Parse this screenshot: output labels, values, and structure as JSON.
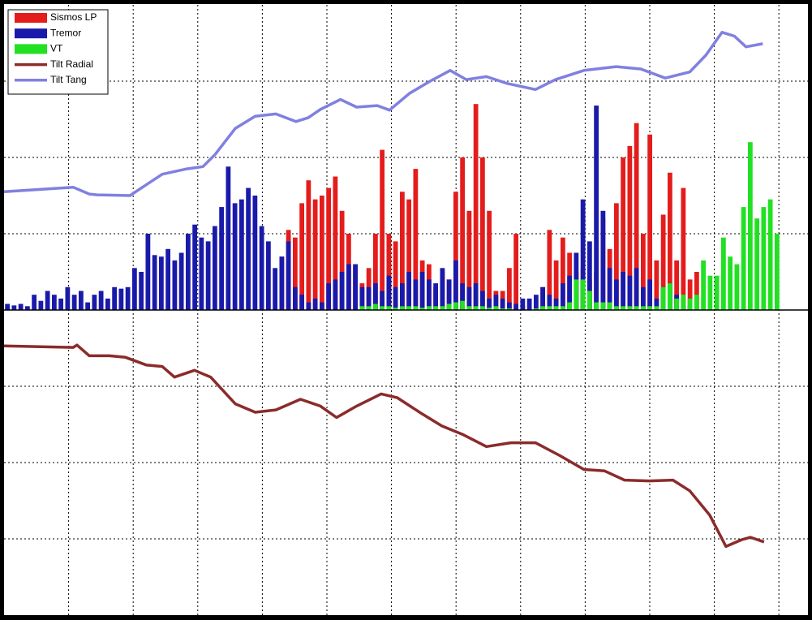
{
  "chart_data": {
    "type": "combo",
    "categories": [
      null,
      null,
      null,
      null,
      null,
      null,
      null,
      null,
      null,
      null,
      null,
      null,
      null,
      null,
      null,
      null,
      null,
      null,
      null,
      null,
      null,
      null,
      null,
      null,
      null,
      null,
      null,
      null,
      null,
      null,
      null,
      null,
      null,
      null,
      null,
      null,
      null,
      null,
      null,
      null,
      null,
      null,
      null,
      null,
      null,
      null,
      null,
      null,
      null,
      null,
      null,
      null,
      null,
      null,
      null,
      null,
      null,
      null,
      null,
      null,
      null,
      null,
      null,
      null,
      null,
      null,
      null,
      null,
      null,
      null,
      null,
      null,
      null,
      null,
      null,
      null,
      null,
      null,
      null,
      null,
      null,
      null,
      null,
      null,
      null,
      null,
      null,
      null,
      null,
      null,
      null,
      null,
      null,
      null,
      null,
      null,
      null,
      null,
      null,
      null,
      null,
      null,
      null,
      null,
      null,
      null,
      null,
      null,
      null,
      null,
      null,
      null,
      null,
      null,
      null,
      null
    ],
    "series": [
      {
        "name": "Sismos LP",
        "type": "bar",
        "color": "#e41c1c",
        "values": [
          0,
          0,
          0,
          0,
          0,
          0,
          0,
          0,
          0,
          0,
          0,
          0,
          0,
          0,
          0,
          0,
          0,
          0,
          0,
          0,
          0,
          0,
          0,
          0,
          0,
          0,
          0,
          0,
          0,
          0,
          0,
          0,
          0,
          0,
          0,
          0,
          0,
          0,
          0,
          0,
          0,
          0.7,
          1.05,
          0.95,
          1.4,
          1.7,
          1.45,
          1.5,
          1.6,
          1.75,
          1.3,
          1.0,
          0.6,
          0.35,
          0.55,
          1.0,
          2.1,
          1.0,
          0.9,
          1.55,
          1.45,
          1.85,
          0.65,
          0.6,
          0.3,
          0.5,
          0.4,
          1.55,
          2.0,
          1.3,
          2.7,
          2.0,
          1.3,
          0.25,
          0.25,
          0.55,
          1.0,
          0.05,
          0,
          0,
          0.3,
          1.05,
          0.65,
          0.95,
          0.75,
          0.5,
          0.55,
          0.4,
          0.5,
          1.2,
          0.8,
          1.4,
          2.0,
          2.15,
          2.45,
          1.0,
          2.3,
          0.65,
          1.25,
          1.8,
          0.65,
          1.6,
          0.4,
          0.5,
          0,
          0,
          0,
          0,
          0,
          0,
          0,
          0,
          0,
          0,
          0,
          0
        ]
      },
      {
        "name": "Tremor",
        "type": "bar",
        "color": "#1a1aaa",
        "values": [
          0.08,
          0.06,
          0.08,
          0.05,
          0.2,
          0.12,
          0.25,
          0.2,
          0.15,
          0.3,
          0.2,
          0.25,
          0.1,
          0.2,
          0.25,
          0.15,
          0.3,
          0.28,
          0.3,
          0.55,
          0.5,
          1.0,
          0.72,
          0.7,
          0.8,
          0.65,
          0.75,
          1.0,
          1.12,
          0.95,
          0.9,
          1.1,
          1.35,
          1.88,
          1.4,
          1.45,
          1.6,
          1.5,
          1.1,
          0.9,
          0.55,
          0.7,
          0.9,
          0.3,
          0.2,
          0.1,
          0.15,
          0.1,
          0.35,
          0.4,
          0.5,
          0.6,
          0.6,
          0.3,
          0.3,
          0.35,
          0.25,
          0.45,
          0.3,
          0.35,
          0.5,
          0.4,
          0.5,
          0.4,
          0.35,
          0.55,
          0.4,
          0.65,
          0.35,
          0.3,
          0.35,
          0.25,
          0.15,
          0.2,
          0.15,
          0.1,
          0.08,
          0.15,
          0.15,
          0.2,
          0.3,
          0.2,
          0.15,
          0.35,
          0.45,
          0.75,
          1.45,
          0.9,
          2.68,
          1.3,
          0.55,
          0.4,
          0.5,
          0.45,
          0.55,
          0.3,
          0.4,
          0.15,
          0.3,
          0.35,
          0.2,
          0.05,
          0.05,
          0,
          0,
          0,
          0,
          0,
          0,
          0,
          0,
          0,
          0,
          0,
          0,
          0
        ]
      },
      {
        "name": "VT",
        "type": "bar",
        "color": "#22e022",
        "values": [
          0,
          0,
          0,
          0,
          0,
          0,
          0,
          0,
          0,
          0,
          0,
          0,
          0,
          0,
          0,
          0,
          0,
          0,
          0,
          0,
          0,
          0,
          0,
          0,
          0,
          0,
          0,
          0,
          0,
          0,
          0,
          0,
          0,
          0,
          0,
          0,
          0,
          0,
          0,
          0,
          0,
          0,
          0,
          0,
          0,
          0,
          0,
          0,
          0,
          0,
          0,
          0,
          0,
          0.05,
          0.05,
          0.08,
          0.05,
          0.05,
          0.03,
          0.05,
          0.05,
          0.05,
          0.03,
          0.05,
          0.05,
          0.05,
          0.08,
          0.1,
          0.12,
          0.05,
          0.05,
          0.05,
          0.03,
          0.05,
          0.02,
          0.02,
          0,
          0,
          0,
          0.02,
          0.05,
          0.05,
          0.05,
          0.05,
          0.1,
          0.4,
          0.4,
          0.25,
          0.1,
          0.1,
          0.1,
          0.05,
          0.05,
          0.05,
          0.05,
          0.05,
          0.05,
          0.05,
          0.3,
          0.35,
          0.15,
          0.2,
          0.15,
          0.2,
          0.65,
          0.45,
          0.45,
          0.95,
          0.7,
          0.6,
          1.35,
          2.2,
          1.2,
          1.35,
          1.45,
          1.0
        ]
      },
      {
        "name": "Tilt Radial",
        "type": "line",
        "color": "#8b2b2b",
        "x": [
          0,
          1.07,
          1.13,
          1.32,
          1.63,
          1.88,
          2.2,
          2.45,
          2.64,
          2.95,
          3.2,
          3.58,
          3.89,
          4.21,
          4.59,
          4.9,
          5.15,
          5.46,
          5.84,
          6.09,
          6.47,
          6.78,
          7.1,
          7.47,
          7.85,
          8.23,
          8.61,
          8.98,
          9.3,
          9.61,
          9.99,
          10.36,
          10.62,
          10.93,
          11.18,
          11.43,
          11.56,
          11.77
        ],
        "values": [
          -0.47,
          -0.49,
          -0.46,
          -0.6,
          -0.6,
          -0.62,
          -0.72,
          -0.74,
          -0.88,
          -0.79,
          -0.88,
          -1.23,
          -1.34,
          -1.31,
          -1.17,
          -1.26,
          -1.41,
          -1.26,
          -1.1,
          -1.15,
          -1.36,
          -1.52,
          -1.63,
          -1.79,
          -1.74,
          -1.74,
          -1.91,
          -2.09,
          -2.11,
          -2.23,
          -2.24,
          -2.23,
          -2.37,
          -2.69,
          -3.1,
          -3.01,
          -2.98,
          -3.04
        ]
      },
      {
        "name": "Tilt Tang",
        "type": "line",
        "color": "#8080e0",
        "x": [
          0,
          1.07,
          1.32,
          1.44,
          1.95,
          2.2,
          2.45,
          2.83,
          3.08,
          3.27,
          3.58,
          3.89,
          4.21,
          4.52,
          4.71,
          4.9,
          5.21,
          5.46,
          5.78,
          5.97,
          6.28,
          6.6,
          6.91,
          7.16,
          7.47,
          7.79,
          8.23,
          8.54,
          8.98,
          9.48,
          9.86,
          10.24,
          10.62,
          10.87,
          11.12,
          11.31,
          11.49,
          11.75
        ],
        "values": [
          1.55,
          1.61,
          1.52,
          1.51,
          1.5,
          1.64,
          1.78,
          1.85,
          1.88,
          2.04,
          2.38,
          2.54,
          2.57,
          2.47,
          2.52,
          2.63,
          2.76,
          2.66,
          2.68,
          2.62,
          2.84,
          3.0,
          3.14,
          3.02,
          3.06,
          2.97,
          2.89,
          3.02,
          3.14,
          3.19,
          3.16,
          3.04,
          3.12,
          3.34,
          3.64,
          3.59,
          3.45,
          3.49
        ]
      }
    ],
    "xlim": [
      0,
      12.45
    ],
    "xticks": [
      1,
      2,
      3,
      4,
      5,
      6,
      7,
      8,
      9,
      10,
      11,
      12
    ],
    "ylim": [
      -4,
      4
    ],
    "yticks": [
      -3,
      -2,
      -1,
      0,
      1,
      2,
      3
    ],
    "grid": true,
    "legend": "upper left"
  }
}
